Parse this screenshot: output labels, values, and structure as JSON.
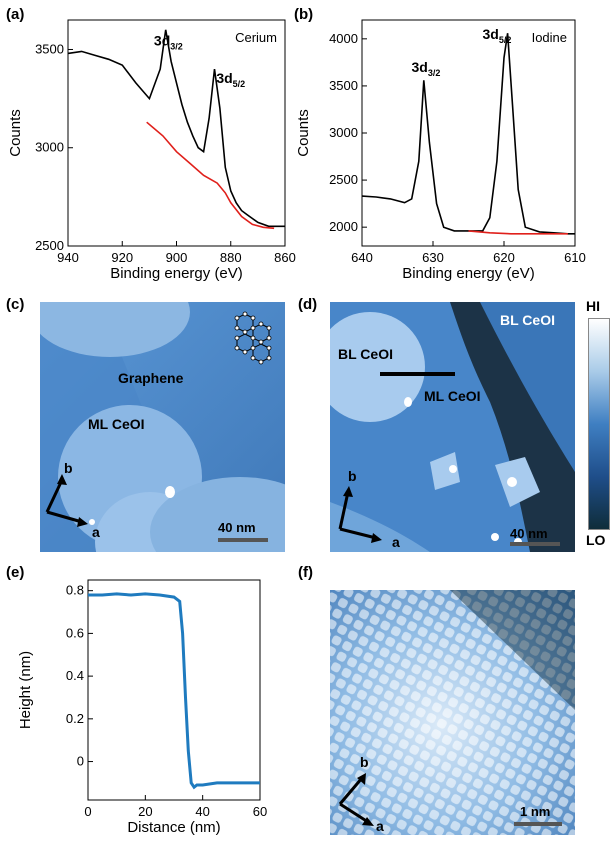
{
  "panel_labels": {
    "a": "(a)",
    "b": "(b)",
    "c": "(c)",
    "d": "(d)",
    "e": "(e)",
    "f": "(f)"
  },
  "chart_data": [
    {
      "id": "a",
      "type": "line",
      "title": "",
      "xlabel": "Binding energy (eV)",
      "ylabel": "Counts",
      "xlim": [
        940,
        860
      ],
      "ylim": [
        2500,
        3650
      ],
      "xticks": [
        "940",
        "920",
        "900",
        "880",
        "860"
      ],
      "yticks": [
        "2500",
        "3000",
        "3500"
      ],
      "annotations": [
        {
          "base": "3d",
          "sub": "3/2",
          "x": 903,
          "y": 3520
        },
        {
          "base": "3d",
          "sub": "5/2",
          "x": 880,
          "y": 3330
        },
        {
          "text": "Cerium"
        }
      ],
      "series": [
        {
          "color": "#000000",
          "x": [
            940,
            935,
            930,
            925,
            920,
            915,
            910,
            906,
            904,
            902,
            900,
            898,
            896,
            894,
            892,
            890,
            888,
            886,
            884,
            882,
            880,
            878,
            876,
            874,
            872,
            870,
            866,
            860
          ],
          "y": [
            3480,
            3490,
            3470,
            3450,
            3420,
            3330,
            3250,
            3400,
            3600,
            3440,
            3330,
            3220,
            3130,
            3060,
            3000,
            2980,
            3150,
            3400,
            3200,
            2900,
            2780,
            2720,
            2680,
            2660,
            2640,
            2620,
            2600,
            2600
          ]
        },
        {
          "color": "#e0201b",
          "x": [
            911,
            905,
            900,
            895,
            890,
            885,
            882,
            880,
            876,
            872,
            868,
            864
          ],
          "y": [
            3130,
            3060,
            2980,
            2920,
            2860,
            2820,
            2770,
            2720,
            2650,
            2610,
            2595,
            2590
          ]
        }
      ]
    },
    {
      "id": "b",
      "type": "line",
      "title": "",
      "xlabel": "Binding energy (eV)",
      "ylabel": "Counts",
      "xlim": [
        640,
        610
      ],
      "ylim": [
        1800,
        4200
      ],
      "xticks": [
        "640",
        "630",
        "620",
        "610"
      ],
      "yticks": [
        "2000",
        "2500",
        "3000",
        "3500",
        "4000"
      ],
      "annotations": [
        {
          "base": "3d",
          "sub": "3/2",
          "x": 631,
          "y": 3650
        },
        {
          "base": "3d",
          "sub": "5/2",
          "x": 621,
          "y": 4000
        },
        {
          "text": "Iodine"
        }
      ],
      "series": [
        {
          "color": "#000000",
          "x": [
            640,
            638,
            636,
            634,
            633,
            632,
            631.3,
            630.5,
            629.5,
            628.5,
            627,
            625,
            623,
            622,
            621,
            620,
            619.5,
            618.8,
            618,
            617,
            615,
            613,
            611,
            610
          ],
          "y": [
            2330,
            2320,
            2300,
            2260,
            2300,
            2700,
            3560,
            2900,
            2250,
            2000,
            1960,
            1960,
            1960,
            2100,
            2700,
            3800,
            4060,
            3300,
            2400,
            2000,
            1950,
            1940,
            1930,
            1930
          ]
        },
        {
          "color": "#e0201b",
          "x": [
            625,
            622,
            619,
            616,
            613,
            611
          ],
          "y": [
            1960,
            1940,
            1930,
            1930,
            1930,
            1930
          ]
        }
      ]
    },
    {
      "id": "e",
      "type": "line",
      "title": "",
      "xlabel": "Distance (nm)",
      "ylabel": "Height (nm)",
      "xlim": [
        0,
        60
      ],
      "ylim": [
        -0.18,
        0.85
      ],
      "xticks": [
        "0",
        "20",
        "40",
        "60"
      ],
      "yticks": [
        "0",
        "0.2",
        "0.4",
        "0.6",
        "0.8"
      ],
      "series": [
        {
          "color": "#1f7bbf",
          "x": [
            0,
            5,
            10,
            15,
            20,
            25,
            30,
            32,
            33,
            34,
            35,
            36,
            37,
            38,
            40,
            45,
            50,
            55,
            60
          ],
          "y": [
            0.78,
            0.78,
            0.785,
            0.78,
            0.785,
            0.78,
            0.77,
            0.75,
            0.6,
            0.3,
            0.05,
            -0.1,
            -0.12,
            -0.11,
            -0.11,
            -0.1,
            -0.1,
            -0.1,
            -0.1
          ]
        }
      ]
    }
  ],
  "stm_c": {
    "graphene": "Graphene",
    "ml": "ML CeOI",
    "scale": "40 nm",
    "axis_b": "b",
    "axis_a": "a"
  },
  "stm_d": {
    "bl1": "BL CeOI",
    "bl2": "BL CeOI",
    "ml": "ML CeOI",
    "scale": "40 nm",
    "axis_b": "b",
    "axis_a": "a"
  },
  "stm_f": {
    "scale": "1 nm",
    "axis_b": "b",
    "axis_a": "a"
  },
  "colorbar": {
    "hi": "HI",
    "lo": "LO",
    "stops": [
      "#ffffff",
      "#a9cbe8",
      "#3f7fc2",
      "#1f4e8a",
      "#0f2d3a"
    ]
  }
}
